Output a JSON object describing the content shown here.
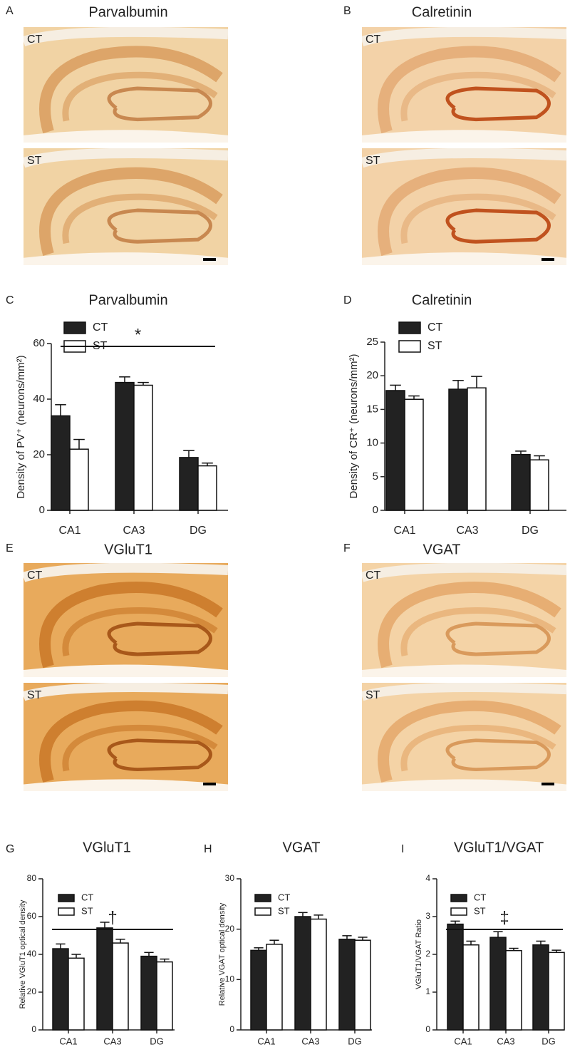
{
  "image_panels": [
    {
      "panel": "A",
      "title": "Parvalbumin",
      "rows": [
        "CT",
        "ST"
      ]
    },
    {
      "panel": "B",
      "title": "Calretinin",
      "rows": [
        "CT",
        "ST"
      ]
    },
    {
      "panel": "E",
      "title": "VGluT1",
      "rows": [
        "CT",
        "ST"
      ]
    },
    {
      "panel": "F",
      "title": "VGAT",
      "rows": [
        "CT",
        "ST"
      ]
    }
  ],
  "chart_data": [
    {
      "type": "bar",
      "panel": "C",
      "title": "Parvalbumin",
      "y_label": "Density of PV⁺ (neurons/mm²)",
      "categories": [
        "CA1",
        "CA3",
        "DG"
      ],
      "ylim": [
        0,
        60
      ],
      "yticks": [
        0,
        20,
        40,
        60
      ],
      "annotation": "*",
      "series": [
        {
          "name": "CT",
          "color": "#222222",
          "values": [
            34,
            46,
            19
          ],
          "errors": [
            4,
            2,
            2.5
          ]
        },
        {
          "name": "ST",
          "color": "#ffffff",
          "values": [
            22,
            45,
            16
          ],
          "errors": [
            3.5,
            1,
            1
          ]
        }
      ]
    },
    {
      "type": "bar",
      "panel": "D",
      "title": "Calretinin",
      "y_label": "Density of CR⁺ (neurons/mm²)",
      "categories": [
        "CA1",
        "CA3",
        "DG"
      ],
      "ylim": [
        0,
        25
      ],
      "yticks": [
        0,
        5,
        10,
        15,
        20,
        25
      ],
      "series": [
        {
          "name": "CT",
          "color": "#222222",
          "values": [
            17.8,
            18,
            8.3
          ],
          "errors": [
            0.8,
            1.3,
            0.5
          ]
        },
        {
          "name": "ST",
          "color": "#ffffff",
          "values": [
            16.5,
            18.2,
            7.5
          ],
          "errors": [
            0.5,
            1.7,
            0.6
          ]
        }
      ]
    },
    {
      "type": "bar",
      "panel": "G",
      "title": "VGluT1",
      "y_label": "Relative VGluT1 optical density",
      "categories": [
        "CA1",
        "CA3",
        "DG"
      ],
      "ylim": [
        0,
        80
      ],
      "yticks": [
        0,
        20,
        40,
        60,
        80
      ],
      "annotation": "†",
      "series": [
        {
          "name": "CT",
          "color": "#222222",
          "values": [
            43,
            54,
            39
          ],
          "errors": [
            2.5,
            3,
            2
          ]
        },
        {
          "name": "ST",
          "color": "#ffffff",
          "values": [
            38,
            46,
            36
          ],
          "errors": [
            2,
            2,
            1.5
          ]
        }
      ]
    },
    {
      "type": "bar",
      "panel": "H",
      "title": "VGAT",
      "y_label": "Relative VGAT optical density",
      "categories": [
        "CA1",
        "CA3",
        "DG"
      ],
      "ylim": [
        0,
        30
      ],
      "yticks": [
        0,
        10,
        20,
        30
      ],
      "series": [
        {
          "name": "CT",
          "color": "#222222",
          "values": [
            15.8,
            22.5,
            18
          ],
          "errors": [
            0.5,
            0.8,
            0.7
          ]
        },
        {
          "name": "ST",
          "color": "#ffffff",
          "values": [
            17,
            22,
            17.8
          ],
          "errors": [
            0.8,
            0.8,
            0.6
          ]
        }
      ]
    },
    {
      "type": "bar",
      "panel": "I",
      "title": "VGluT1/VGAT",
      "y_label": "VGluT1/VGAT Ratio",
      "categories": [
        "CA1",
        "CA3",
        "DG"
      ],
      "ylim": [
        0,
        4
      ],
      "yticks": [
        0,
        1,
        2,
        3,
        4
      ],
      "annotation": "‡",
      "series": [
        {
          "name": "CT",
          "color": "#222222",
          "values": [
            2.8,
            2.45,
            2.25
          ],
          "errors": [
            0.08,
            0.15,
            0.1
          ]
        },
        {
          "name": "ST",
          "color": "#ffffff",
          "values": [
            2.25,
            2.1,
            2.05
          ],
          "errors": [
            0.1,
            0.06,
            0.06
          ]
        }
      ]
    }
  ]
}
